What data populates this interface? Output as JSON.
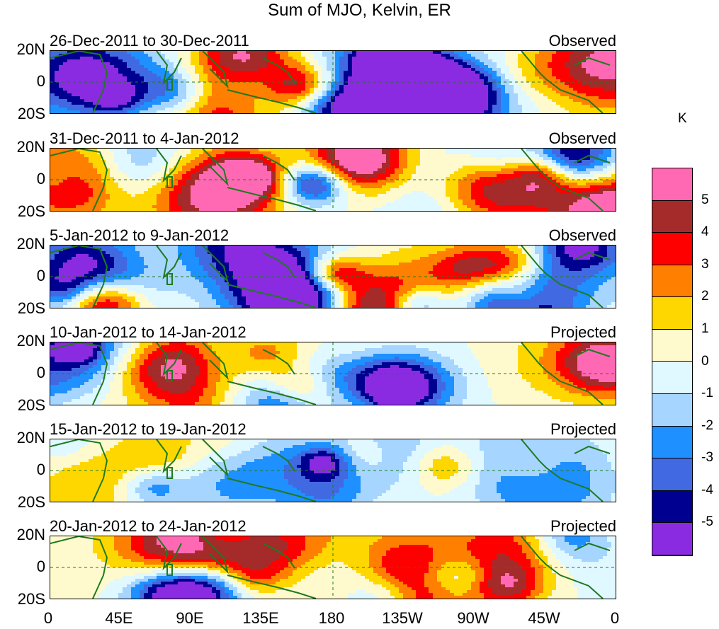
{
  "title": "Sum of MJO, Kelvin, ER",
  "colorbar": {
    "unit": "K",
    "ticks": [
      "5",
      "4",
      "3",
      "2",
      "1",
      "0",
      "-1",
      "-2",
      "-3",
      "-4",
      "-5"
    ],
    "colors": [
      "#ff69b4",
      "#a52a2a",
      "#ff0000",
      "#ff7f00",
      "#ffd700",
      "#fffacd",
      "#e0f8ff",
      "#a6d5ff",
      "#1e90ff",
      "#4169e1",
      "#000090",
      "#8a2be2"
    ]
  },
  "panels": [
    {
      "date": "26-Dec-2011 to 30-Dec-2011",
      "type": "Observed"
    },
    {
      "date": "31-Dec-2011 to 4-Jan-2012",
      "type": "Observed"
    },
    {
      "date": "5-Jan-2012 to 9-Jan-2012",
      "type": "Observed"
    },
    {
      "date": "10-Jan-2012 to 14-Jan-2012",
      "type": "Projected"
    },
    {
      "date": "15-Jan-2012 to 19-Jan-2012",
      "type": "Projected"
    },
    {
      "date": "20-Jan-2012 to 24-Jan-2012",
      "type": "Projected"
    }
  ],
  "y_ticks": [
    "20N",
    "0",
    "20S"
  ],
  "x_ticks": [
    "0",
    "45E",
    "90E",
    "135E",
    "180",
    "135W",
    "90W",
    "45W",
    "0"
  ]
}
